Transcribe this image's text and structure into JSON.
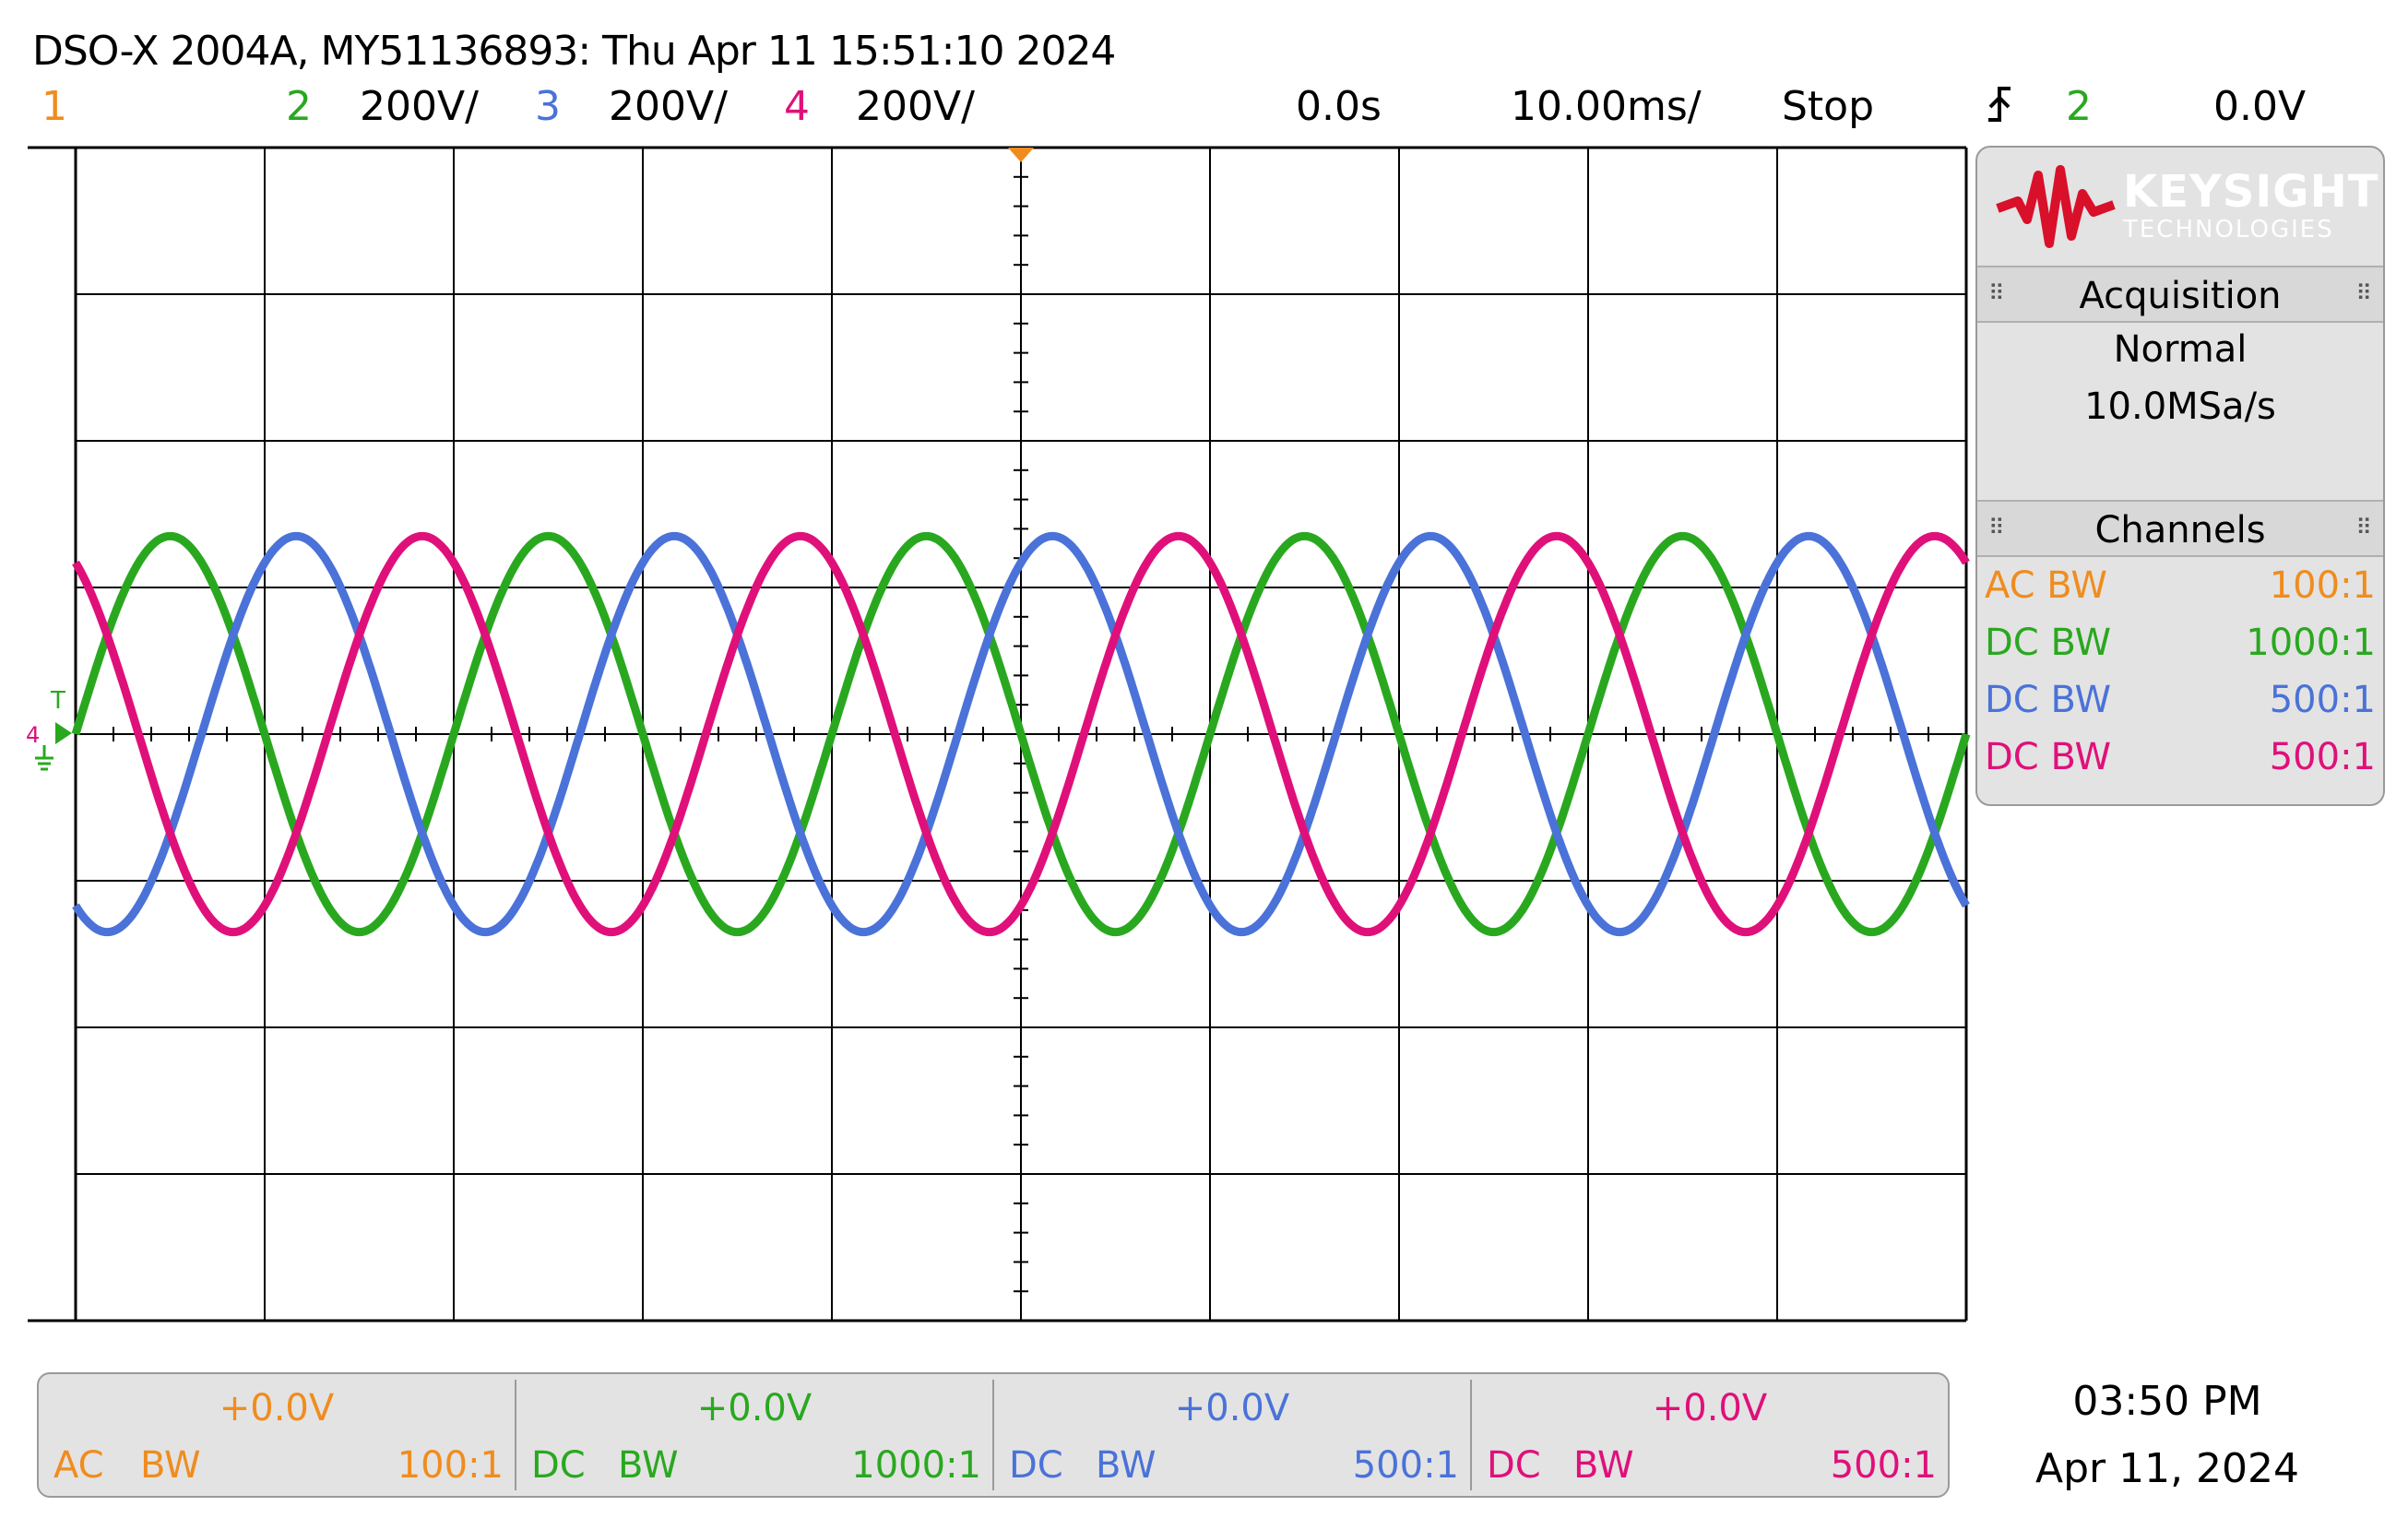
{
  "header": {
    "title": "DSO-X 2004A, MY51136893: Thu Apr 11 15:51:10 2024",
    "ch1_number": "1",
    "ch2_number": "2",
    "ch2_scale": "200V/",
    "ch3_number": "3",
    "ch3_scale": "200V/",
    "ch4_number": "4",
    "ch4_scale": "200V/",
    "time_delay": "0.0s",
    "time_scale": "10.00ms/",
    "run_state": "Stop",
    "trigger_icon": "rising-edge-trigger-icon",
    "trigger_source": "2",
    "trigger_level": "0.0V"
  },
  "colors": {
    "ch1": "#f08c1e",
    "ch2": "#29a81f",
    "ch3": "#4a72d8",
    "ch4": "#e0107a",
    "logo_red": "#d8102a",
    "trigger_marker": "#f08c1e"
  },
  "panel": {
    "brand": "KEYSIGHT",
    "brand_sub": "TECHNOLOGIES",
    "acquisition_title": "Acquisition",
    "acquisition_mode": "Normal",
    "sample_rate": "10.0MSa/s",
    "channels_title": "Channels",
    "channels": [
      {
        "coupling": "AC BW",
        "probe": "100:1"
      },
      {
        "coupling": "DC BW",
        "probe": "1000:1"
      },
      {
        "coupling": "DC BW",
        "probe": "500:1"
      },
      {
        "coupling": "DC BW",
        "probe": "500:1"
      }
    ]
  },
  "marker": {
    "ground_label": "T",
    "ground_channels": "4"
  },
  "bottom": {
    "channels": [
      {
        "offset": "+0.0V",
        "coupling": "AC",
        "bw": "BW",
        "probe": "100:1"
      },
      {
        "offset": "+0.0V",
        "coupling": "DC",
        "bw": "BW",
        "probe": "1000:1"
      },
      {
        "offset": "+0.0V",
        "coupling": "DC",
        "bw": "BW",
        "probe": "500:1"
      },
      {
        "offset": "+0.0V",
        "coupling": "DC",
        "bw": "BW",
        "probe": "500:1"
      }
    ],
    "time": "03:50 PM",
    "date": "Apr 11, 2024"
  },
  "chart_data": {
    "type": "line",
    "x_unit": "s",
    "x_range": [
      -0.05,
      0.05
    ],
    "y_unit": "V",
    "y_range": [
      -800,
      800
    ],
    "grid": true,
    "series": [
      {
        "name": "2",
        "amplitude": 270,
        "frequency_hz": 50,
        "phase_deg": 180
      },
      {
        "name": "3",
        "amplitude": 270,
        "frequency_hz": 50,
        "phase_deg": 60
      },
      {
        "name": "4",
        "amplitude": 270,
        "frequency_hz": 50,
        "phase_deg": -60
      }
    ]
  }
}
